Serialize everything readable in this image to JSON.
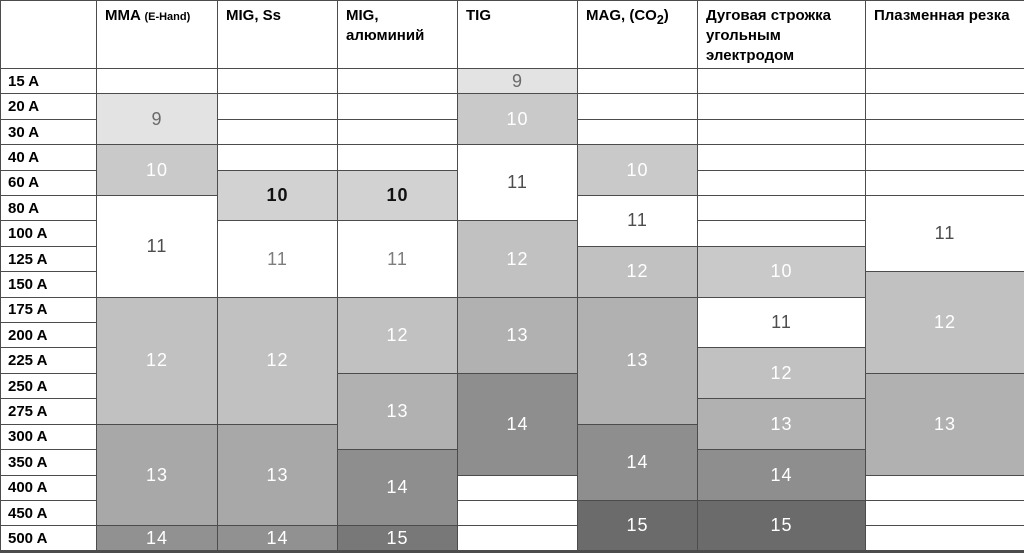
{
  "chart_data": {
    "type": "table",
    "title": "Welding filter shade numbers (DIN) by process and current",
    "categories": [
      "15 A",
      "20 A",
      "30 A",
      "40 A",
      "60 A",
      "80 A",
      "100 A",
      "125 A",
      "150 A",
      "175 A",
      "200 A",
      "225 A",
      "250 A",
      "275 A",
      "300 A",
      "350 A",
      "400 A",
      "450 A",
      "500 A"
    ],
    "series": [
      {
        "name": "MMA (E-Hand)",
        "values": [
          null,
          9,
          9,
          10,
          10,
          11,
          11,
          11,
          11,
          12,
          12,
          12,
          12,
          12,
          13,
          13,
          13,
          13,
          14
        ]
      },
      {
        "name": "MIG, Ss",
        "values": [
          null,
          null,
          null,
          null,
          10,
          10,
          11,
          11,
          11,
          12,
          12,
          12,
          12,
          12,
          13,
          13,
          13,
          13,
          14
        ]
      },
      {
        "name": "MIG, алюминий",
        "values": [
          null,
          null,
          null,
          null,
          10,
          10,
          11,
          11,
          11,
          12,
          12,
          12,
          13,
          13,
          13,
          14,
          14,
          14,
          15
        ]
      },
      {
        "name": "TIG",
        "values": [
          9,
          10,
          10,
          11,
          11,
          11,
          12,
          12,
          12,
          13,
          13,
          13,
          14,
          14,
          14,
          14,
          null,
          null,
          null
        ]
      },
      {
        "name": "MAG, (CO2)",
        "values": [
          null,
          null,
          null,
          10,
          10,
          11,
          11,
          12,
          12,
          13,
          13,
          13,
          13,
          13,
          14,
          14,
          14,
          15,
          15
        ]
      },
      {
        "name": "Дуговая строжка угольным электродом",
        "values": [
          null,
          null,
          null,
          null,
          null,
          null,
          null,
          10,
          10,
          11,
          11,
          12,
          12,
          13,
          13,
          14,
          14,
          15,
          15
        ]
      },
      {
        "name": "Плазменная резка",
        "values": [
          null,
          null,
          null,
          null,
          null,
          11,
          11,
          11,
          12,
          12,
          12,
          12,
          13,
          13,
          13,
          13,
          null,
          null,
          null
        ]
      }
    ],
    "legend_position": "none",
    "grid": true
  },
  "shade_styles": {
    "empty": {
      "bg": "#ffffff",
      "fg": "#000000"
    },
    "s9": {
      "bg": "#e3e3e3",
      "fg": "#6a6a6a"
    },
    "s10": {
      "bg": "#c9c9c9",
      "fg": "#ffffff"
    },
    "s10_bold": {
      "bg": "#d2d2d2",
      "fg": "#111111",
      "bold": true
    },
    "white_dark": {
      "bg": "#ffffff",
      "fg": "#4d4d4d"
    },
    "white_light": {
      "bg": "#ffffff",
      "fg": "#7d7d7d"
    },
    "s12": {
      "bg": "#c1c1c1",
      "fg": "#ffffff"
    },
    "s13": {
      "bg": "#b1b1b1",
      "fg": "#ffffff"
    },
    "s13_dark": {
      "bg": "#a8a8a8",
      "fg": "#ffffff"
    },
    "s14": {
      "bg": "#8e8e8e",
      "fg": "#ffffff"
    },
    "s14_dark": {
      "bg": "#919191",
      "fg": "#ffffff"
    },
    "s15": {
      "bg": "#787878",
      "fg": "#ffffff"
    },
    "s15_dark": {
      "bg": "#6b6b6b",
      "fg": "#ffffff"
    }
  },
  "table": {
    "corner_label": "",
    "row_labels": [
      "15 A",
      "20 A",
      "30 A",
      "40 A",
      "60 A",
      "80 A",
      "100 A",
      "125 A",
      "150 A",
      "175 A",
      "200 A",
      "225 A",
      "250 A",
      "275 A",
      "300 A",
      "350 A",
      "400 A",
      "450 A",
      "500 A"
    ],
    "columns": [
      {
        "name": "mma",
        "title": "MMA",
        "subtitle": "(E-Hand)",
        "cells": [
          {
            "label": "",
            "span": 1,
            "shade": "empty"
          },
          {
            "label": "9",
            "span": 2,
            "shade": "s9"
          },
          {
            "label": "10",
            "span": 2,
            "shade": "s10"
          },
          {
            "label": "11",
            "span": 4,
            "shade": "white_dark"
          },
          {
            "label": "12",
            "span": 5,
            "shade": "s12"
          },
          {
            "label": "13",
            "span": 4,
            "shade": "s13_dark"
          },
          {
            "label": "14",
            "span": 1,
            "shade": "s14_dark"
          }
        ]
      },
      {
        "name": "mig-ss",
        "title": "MIG, Ss",
        "cells": [
          {
            "label": "",
            "span": 1,
            "shade": "empty"
          },
          {
            "label": "",
            "span": 1,
            "shade": "empty"
          },
          {
            "label": "",
            "span": 1,
            "shade": "empty"
          },
          {
            "label": "",
            "span": 1,
            "shade": "empty"
          },
          {
            "label": "10",
            "span": 2,
            "shade": "s10_bold"
          },
          {
            "label": "11",
            "span": 3,
            "shade": "white_light"
          },
          {
            "label": "12",
            "span": 5,
            "shade": "s12"
          },
          {
            "label": "13",
            "span": 4,
            "shade": "s13_dark"
          },
          {
            "label": "14",
            "span": 1,
            "shade": "s14_dark"
          }
        ]
      },
      {
        "name": "mig-aluminium",
        "title": "MIG, алюминий",
        "cells": [
          {
            "label": "",
            "span": 1,
            "shade": "empty"
          },
          {
            "label": "",
            "span": 1,
            "shade": "empty"
          },
          {
            "label": "",
            "span": 1,
            "shade": "empty"
          },
          {
            "label": "",
            "span": 1,
            "shade": "empty"
          },
          {
            "label": "10",
            "span": 2,
            "shade": "s10_bold"
          },
          {
            "label": "11",
            "span": 3,
            "shade": "white_light"
          },
          {
            "label": "12",
            "span": 3,
            "shade": "s12"
          },
          {
            "label": "13",
            "span": 3,
            "shade": "s13"
          },
          {
            "label": "14",
            "span": 3,
            "shade": "s14"
          },
          {
            "label": "15",
            "span": 1,
            "shade": "s15"
          }
        ]
      },
      {
        "name": "tig",
        "title": "TIG",
        "cells": [
          {
            "label": "9",
            "span": 1,
            "shade": "s9"
          },
          {
            "label": "10",
            "span": 2,
            "shade": "s10"
          },
          {
            "label": "11",
            "span": 3,
            "shade": "white_dark"
          },
          {
            "label": "12",
            "span": 3,
            "shade": "s12"
          },
          {
            "label": "13",
            "span": 3,
            "shade": "s13"
          },
          {
            "label": "14",
            "span": 4,
            "shade": "s14"
          },
          {
            "label": "",
            "span": 1,
            "shade": "empty"
          },
          {
            "label": "",
            "span": 1,
            "shade": "empty"
          },
          {
            "label": "",
            "span": 1,
            "shade": "empty"
          }
        ]
      },
      {
        "name": "mag-co2",
        "title_prefix": "MAG, (CO",
        "title_sub": "2",
        "title_suffix": ")",
        "cells": [
          {
            "label": "",
            "span": 1,
            "shade": "empty"
          },
          {
            "label": "",
            "span": 1,
            "shade": "empty"
          },
          {
            "label": "",
            "span": 1,
            "shade": "empty"
          },
          {
            "label": "10",
            "span": 2,
            "shade": "s10"
          },
          {
            "label": "11",
            "span": 2,
            "shade": "white_dark"
          },
          {
            "label": "12",
            "span": 2,
            "shade": "s12"
          },
          {
            "label": "13",
            "span": 5,
            "shade": "s13"
          },
          {
            "label": "14",
            "span": 3,
            "shade": "s14"
          },
          {
            "label": "15",
            "span": 2,
            "shade": "s15_dark"
          }
        ]
      },
      {
        "name": "arc-gouging",
        "title": "Дуговая строжка угольным электродом",
        "cells": [
          {
            "label": "",
            "span": 1,
            "shade": "empty"
          },
          {
            "label": "",
            "span": 1,
            "shade": "empty"
          },
          {
            "label": "",
            "span": 1,
            "shade": "empty"
          },
          {
            "label": "",
            "span": 1,
            "shade": "empty"
          },
          {
            "label": "",
            "span": 1,
            "shade": "empty"
          },
          {
            "label": "",
            "span": 1,
            "shade": "empty"
          },
          {
            "label": "",
            "span": 1,
            "shade": "empty"
          },
          {
            "label": "10",
            "span": 2,
            "shade": "s10"
          },
          {
            "label": "11",
            "span": 2,
            "shade": "white_dark"
          },
          {
            "label": "12",
            "span": 2,
            "shade": "s12"
          },
          {
            "label": "13",
            "span": 2,
            "shade": "s13"
          },
          {
            "label": "14",
            "span": 2,
            "shade": "s14"
          },
          {
            "label": "15",
            "span": 2,
            "shade": "s15_dark"
          }
        ]
      },
      {
        "name": "plasma-cutting",
        "title": "Плазменная резка",
        "cells": [
          {
            "label": "",
            "span": 1,
            "shade": "empty"
          },
          {
            "label": "",
            "span": 1,
            "shade": "empty"
          },
          {
            "label": "",
            "span": 1,
            "shade": "empty"
          },
          {
            "label": "",
            "span": 1,
            "shade": "empty"
          },
          {
            "label": "",
            "span": 1,
            "shade": "empty"
          },
          {
            "label": "11",
            "span": 3,
            "shade": "white_dark"
          },
          {
            "label": "12",
            "span": 4,
            "shade": "s12"
          },
          {
            "label": "13",
            "span": 4,
            "shade": "s13"
          },
          {
            "label": "",
            "span": 1,
            "shade": "empty"
          },
          {
            "label": "",
            "span": 1,
            "shade": "empty"
          },
          {
            "label": "",
            "span": 1,
            "shade": "empty"
          }
        ]
      }
    ]
  }
}
